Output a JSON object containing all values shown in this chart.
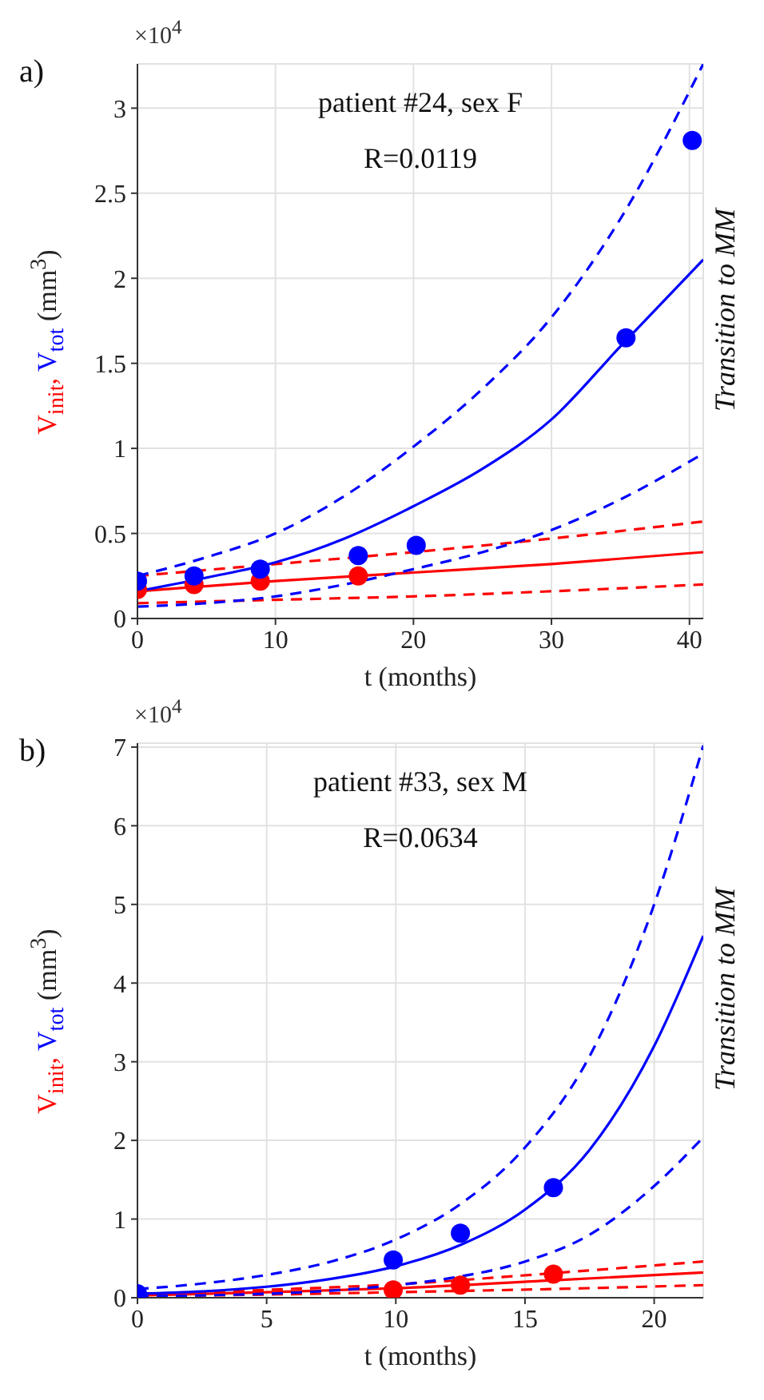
{
  "chart_data": [
    {
      "type": "scatter",
      "title": "patient #24, sex F",
      "subtitle": "R=0.0119",
      "xlabel": "t (months)",
      "ylabel": "V$_{init}$, V$_{tot}$ (mm$^{3}$)",
      "annotations": [
        "a)",
        "×10$^{4}$",
        "Transition to MM"
      ],
      "xlim": [
        0,
        41
      ],
      "xticks": [
        0,
        10,
        20,
        30,
        40
      ],
      "ylim": [
        0,
        3.26
      ],
      "yticks": [
        0,
        0.5,
        1,
        1.5,
        2,
        2.5,
        3
      ],
      "grid": true,
      "legend": false,
      "series": [
        {
          "type": "line",
          "color": "#ff0000",
          "line_style": "dashed",
          "marker": "none",
          "x": [
            0,
            10,
            20,
            30,
            41
          ],
          "values": [
            0.25,
            0.32,
            0.39,
            0.47,
            0.57
          ]
        },
        {
          "type": "line",
          "color": "#ff0000",
          "line_style": "solid",
          "marker": "none",
          "x": [
            0,
            10,
            20,
            30,
            41
          ],
          "values": [
            0.16,
            0.22,
            0.27,
            0.32,
            0.39
          ]
        },
        {
          "type": "line",
          "color": "#ff0000",
          "line_style": "dashed",
          "marker": "none",
          "x": [
            0,
            10,
            20,
            30,
            41
          ],
          "values": [
            0.09,
            0.11,
            0.13,
            0.16,
            0.2
          ]
        },
        {
          "type": "line",
          "color": "#0000ff",
          "line_style": "dashed",
          "marker": "none",
          "x": [
            0,
            5,
            10,
            15,
            20,
            25,
            30,
            35,
            41
          ],
          "values": [
            0.25,
            0.36,
            0.5,
            0.72,
            1.01,
            1.35,
            1.77,
            2.35,
            3.26
          ]
        },
        {
          "type": "line",
          "color": "#0000ff",
          "line_style": "solid",
          "marker": "none",
          "x": [
            0,
            5,
            10,
            15,
            20,
            25,
            30,
            35,
            41
          ],
          "values": [
            0.16,
            0.24,
            0.33,
            0.47,
            0.66,
            0.88,
            1.17,
            1.6,
            2.11
          ]
        },
        {
          "type": "line",
          "color": "#0000ff",
          "line_style": "dashed",
          "marker": "none",
          "x": [
            0,
            5,
            10,
            15,
            20,
            25,
            30,
            35,
            41
          ],
          "values": [
            0.07,
            0.09,
            0.13,
            0.2,
            0.29,
            0.39,
            0.52,
            0.7,
            0.97
          ]
        },
        {
          "type": "scatter",
          "color": "#ff0000",
          "marker": "circle",
          "x": [
            0,
            4.1,
            8.9,
            16
          ],
          "values": [
            0.17,
            0.2,
            0.22,
            0.25
          ]
        },
        {
          "type": "scatter",
          "color": "#0000ff",
          "marker": "circle",
          "x": [
            0,
            4.1,
            8.9,
            16,
            20.2,
            35.4,
            40.2
          ],
          "values": [
            0.22,
            0.25,
            0.29,
            0.37,
            0.43,
            1.65,
            2.81
          ]
        }
      ]
    },
    {
      "type": "scatter",
      "title": "patient #33, sex M",
      "subtitle": "R=0.0634",
      "xlabel": "t (months)",
      "ylabel": "V$_{init}$, V$_{tot}$ (mm$^{3}$)",
      "annotations": [
        "b)",
        "×10$^{4}$",
        "Transition to MM"
      ],
      "xlim": [
        0,
        21.9
      ],
      "xticks": [
        0,
        5,
        10,
        15,
        20
      ],
      "ylim": [
        0,
        7.05
      ],
      "yticks": [
        0,
        1,
        2,
        3,
        4,
        5,
        6,
        7
      ],
      "grid": true,
      "legend": false,
      "series": [
        {
          "type": "line",
          "color": "#ff0000",
          "line_style": "dashed",
          "marker": "none",
          "x": [
            0,
            5,
            10,
            16,
            21.9
          ],
          "values": [
            0.04,
            0.1,
            0.17,
            0.31,
            0.46
          ]
        },
        {
          "type": "line",
          "color": "#ff0000",
          "line_style": "solid",
          "marker": "none",
          "x": [
            0,
            5,
            10,
            16,
            21.9
          ],
          "values": [
            0.03,
            0.07,
            0.12,
            0.22,
            0.32
          ]
        },
        {
          "type": "line",
          "color": "#ff0000",
          "line_style": "dashed",
          "marker": "none",
          "x": [
            0,
            5,
            10,
            16,
            21.9
          ],
          "values": [
            0.02,
            0.04,
            0.07,
            0.11,
            0.16
          ]
        },
        {
          "type": "line",
          "color": "#0000ff",
          "line_style": "dashed",
          "marker": "none",
          "x": [
            0,
            2.5,
            5,
            7.5,
            10,
            12.5,
            15,
            17.5,
            20,
            21.9
          ],
          "values": [
            0.11,
            0.18,
            0.29,
            0.46,
            0.74,
            1.19,
            1.91,
            3.07,
            5.0,
            7.02
          ]
        },
        {
          "type": "line",
          "color": "#0000ff",
          "line_style": "solid",
          "marker": "none",
          "x": [
            0,
            2.5,
            5,
            7.5,
            10,
            12.5,
            15,
            17.5,
            20,
            21.9
          ],
          "values": [
            0.05,
            0.08,
            0.14,
            0.24,
            0.4,
            0.67,
            1.12,
            1.88,
            3.2,
            4.6
          ]
        },
        {
          "type": "line",
          "color": "#0000ff",
          "line_style": "dashed",
          "marker": "none",
          "x": [
            0,
            2.5,
            5,
            7.5,
            10,
            12.5,
            15,
            17.5,
            20,
            21.9
          ],
          "values": [
            0.02,
            0.03,
            0.05,
            0.09,
            0.16,
            0.27,
            0.46,
            0.8,
            1.42,
            2.04
          ]
        },
        {
          "type": "scatter",
          "color": "#ff0000",
          "marker": "circle",
          "x": [
            9.9,
            12.5,
            16.1
          ],
          "values": [
            0.1,
            0.16,
            0.3
          ]
        },
        {
          "type": "scatter",
          "color": "#0000ff",
          "marker": "circle",
          "x": [
            0,
            9.9,
            12.5,
            16.1
          ],
          "values": [
            0.05,
            0.48,
            0.82,
            1.4
          ]
        }
      ]
    }
  ]
}
